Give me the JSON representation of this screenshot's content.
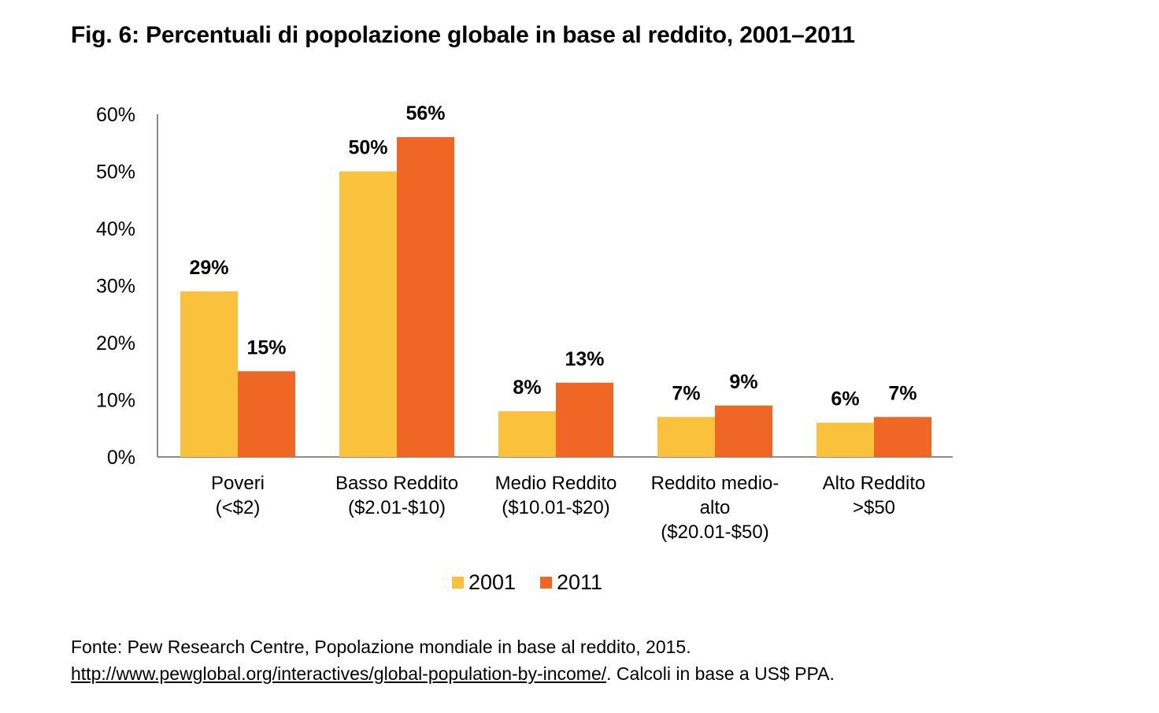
{
  "chart_data": {
    "type": "bar",
    "title": "Fig. 6: Percentuali di popolazione globale in base al reddito, 2001–2011",
    "xlabel": "",
    "ylabel": "",
    "ylim": [
      0,
      60
    ],
    "yticks": [
      "0%",
      "10%",
      "20%",
      "30%",
      "40%",
      "50%",
      "60%"
    ],
    "ytick_values": [
      0,
      10,
      20,
      30,
      40,
      50,
      60
    ],
    "grid": false,
    "legend_position": "bottom-center",
    "categories": [
      [
        "Poveri",
        "(<$2)"
      ],
      [
        "Basso Reddito",
        "($2.01-$10)"
      ],
      [
        "Medio Reddito",
        "($10.01-$20)"
      ],
      [
        "Reddito medio-",
        "alto",
        "($20.01-$50)"
      ],
      [
        "Alto Reddito",
        ">$50"
      ]
    ],
    "series": [
      {
        "name": "2001",
        "color": "#F9C13C",
        "values": [
          29,
          50,
          8,
          7,
          6
        ],
        "labels": [
          "29%",
          "50%",
          "8%",
          "7%",
          "6%"
        ]
      },
      {
        "name": "2011",
        "color": "#F06625",
        "values": [
          15,
          56,
          13,
          9,
          7
        ],
        "labels": [
          "15%",
          "56%",
          "13%",
          "9%",
          "7%"
        ]
      }
    ]
  },
  "source": {
    "line1": "Fonte: Pew Research Centre, Popolazione mondiale in base al reddito, 2015.",
    "link": "http://www.pewglobal.org/interactives/global-population-by-income/",
    "line2_suffix": ". Calcoli in base a US$ PPA."
  },
  "colors": {
    "axis": "#8c8c8c"
  }
}
